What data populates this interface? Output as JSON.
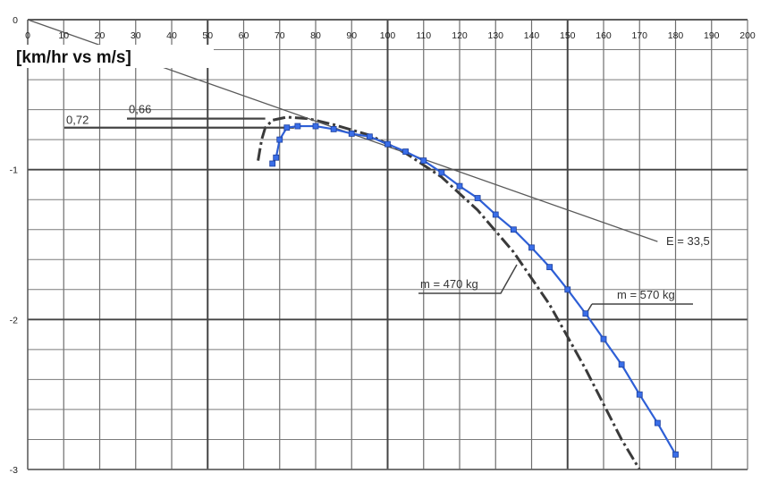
{
  "chart_data": {
    "type": "line",
    "title": "[km/hr  vs  m/s]",
    "xlim": [
      0,
      200
    ],
    "ylim": [
      -3,
      0
    ],
    "x_ticks": [
      "0",
      "10",
      "20",
      "30",
      "40",
      "50",
      "60",
      "70",
      "80",
      "90",
      "100",
      "110",
      "120",
      "130",
      "140",
      "150",
      "160",
      "170",
      "180",
      "190",
      "200"
    ],
    "y_ticks": [
      "0",
      "-1",
      "-2",
      "-3"
    ],
    "grid": true,
    "series": [
      {
        "color": "#2e5fd6",
        "marker": "square",
        "x": [
          68,
          69,
          70,
          72,
          75,
          80,
          85,
          90,
          95,
          100,
          105,
          110,
          115,
          120,
          125,
          130,
          135,
          140,
          145,
          150,
          155,
          160,
          165,
          170,
          175,
          180
        ],
        "y": [
          -0.96,
          -0.92,
          -0.8,
          -0.72,
          -0.71,
          -0.71,
          -0.73,
          -0.76,
          -0.78,
          -0.83,
          -0.88,
          -0.94,
          -1.02,
          -1.11,
          -1.19,
          -1.3,
          -1.4,
          -1.52,
          -1.65,
          -1.8,
          -1.96,
          -2.13,
          -2.3,
          -2.5,
          -2.69,
          -2.9
        ]
      }
    ],
    "background_curves": [
      {
        "label": "m = 470 kg",
        "style": "dash-dot",
        "x": [
          64,
          65,
          66,
          68,
          72,
          78,
          85,
          95,
          105,
          115,
          125,
          135,
          145,
          155,
          165,
          170
        ],
        "y": [
          -0.94,
          -0.8,
          -0.72,
          -0.67,
          -0.65,
          -0.66,
          -0.7,
          -0.77,
          -0.89,
          -1.05,
          -1.27,
          -1.55,
          -1.9,
          -2.33,
          -2.8,
          -3.0
        ]
      },
      {
        "label": "E = 33,5",
        "style": "solid-thin",
        "x": [
          0,
          175
        ],
        "y": [
          0.0,
          -1.48
        ]
      },
      {
        "label": "m = 570 kg",
        "style": "none",
        "x": [],
        "y": []
      }
    ],
    "annotations": [
      {
        "text": "0,72",
        "value": -0.72
      },
      {
        "text": "0,66",
        "value": -0.66
      },
      {
        "text": "E = 33,5"
      },
      {
        "text": "m = 470 kg"
      },
      {
        "text": "m = 570 kg"
      }
    ]
  }
}
